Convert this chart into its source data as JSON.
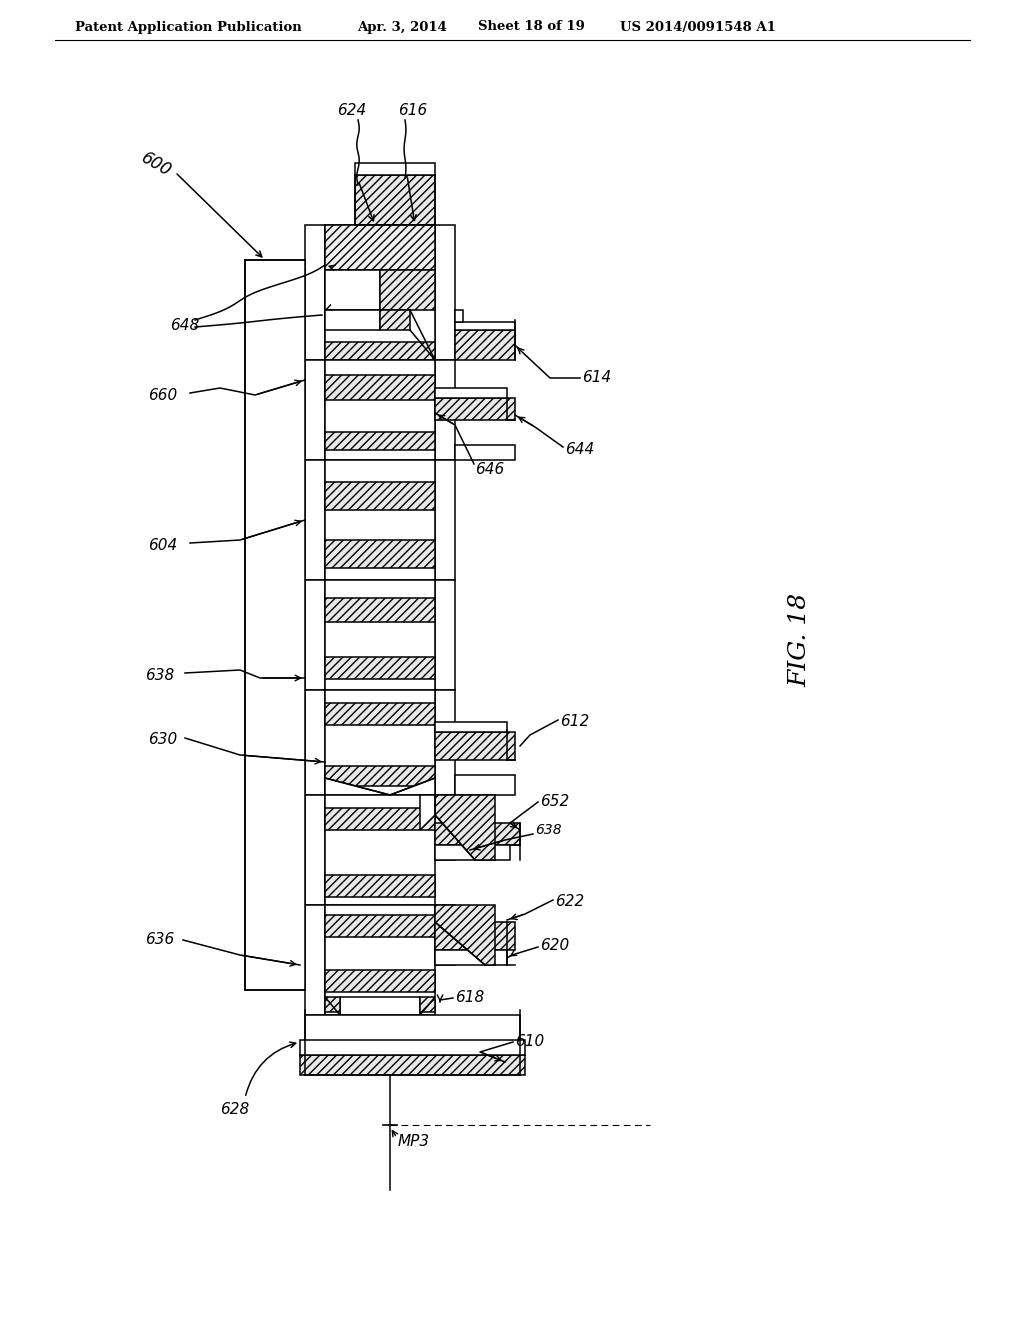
{
  "bg_color": "#ffffff",
  "header_text": "Patent Application Publication",
  "header_date": "Apr. 3, 2014",
  "header_sheet": "Sheet 18 of 19",
  "header_patent": "US 2014/0091548 A1",
  "fig_label": "FIG. 18",
  "title_fontsize": 9.5,
  "label_fontsize": 11,
  "fig_label_fontsize": 18
}
